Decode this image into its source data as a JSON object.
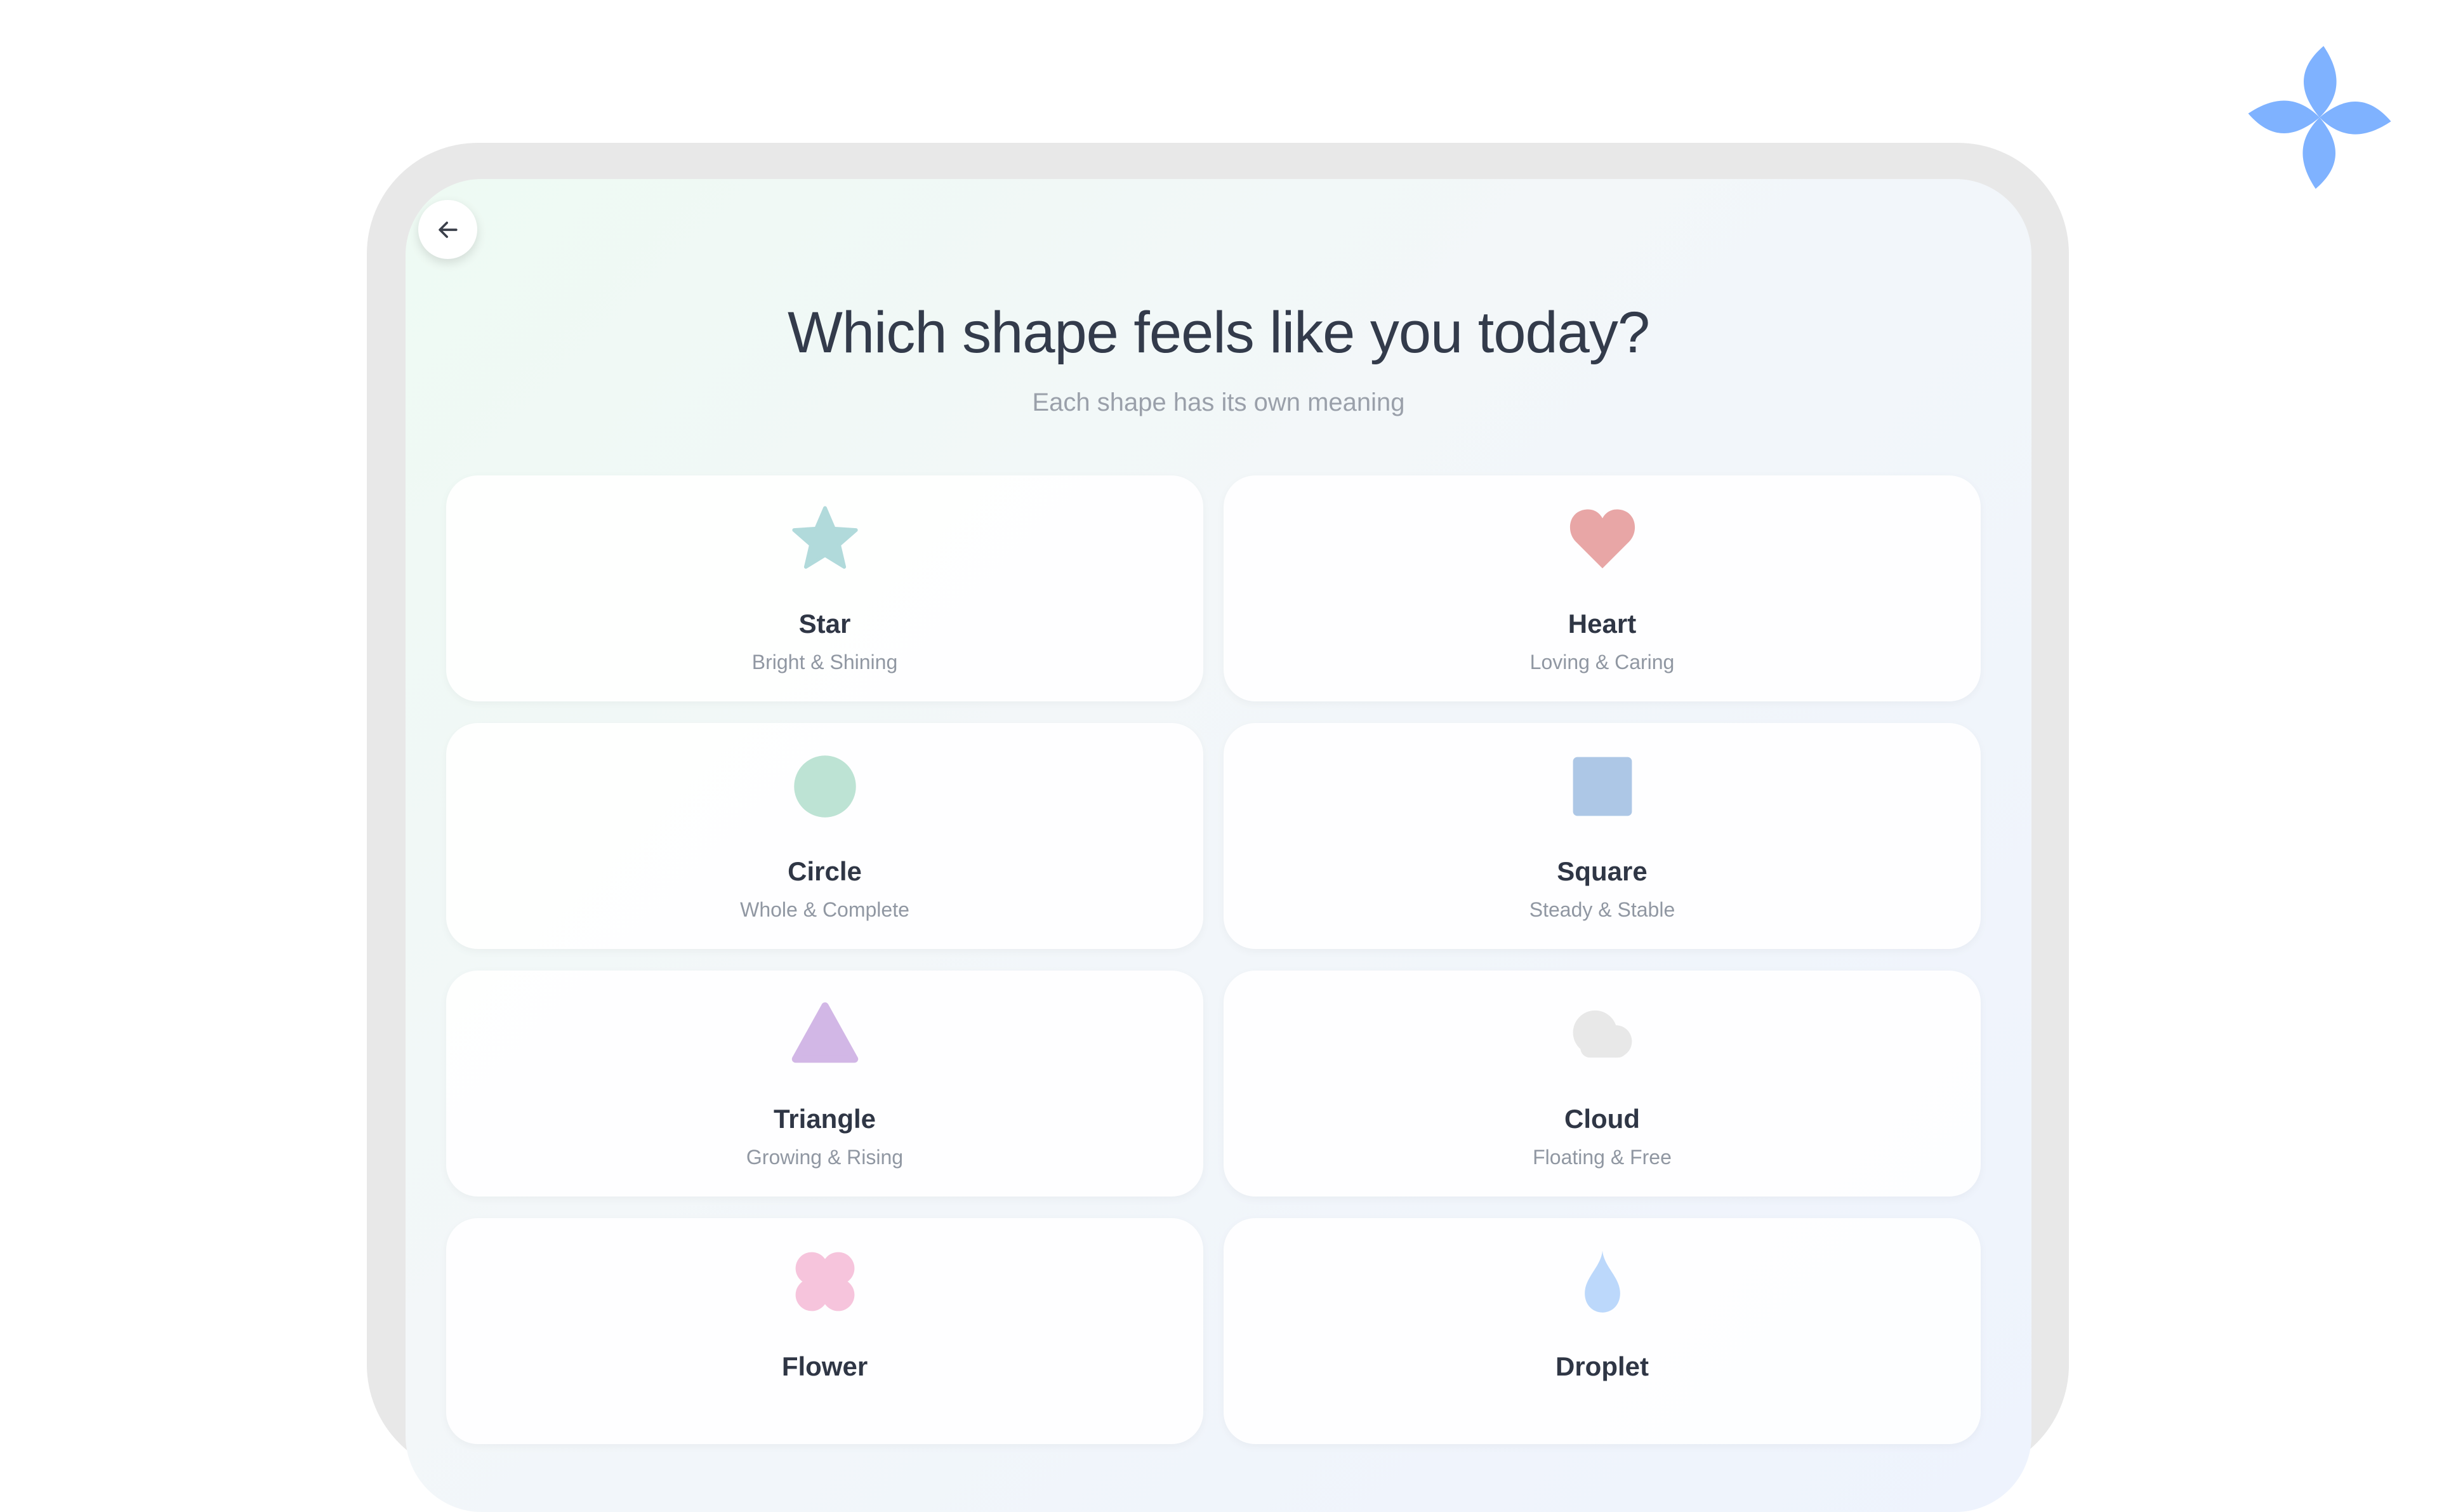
{
  "header": {
    "title": "Which shape feels like you today?",
    "subtitle": "Each shape has its own meaning"
  },
  "back_button": {
    "icon": "arrow-left-icon"
  },
  "logo": {
    "icon": "four-petal-flower-icon",
    "color": "#7fb2ff"
  },
  "shapes": [
    {
      "name": "Star",
      "desc": "Bright & Shining",
      "icon": "star-icon",
      "color": "#b1dadb"
    },
    {
      "name": "Heart",
      "desc": "Loving & Caring",
      "icon": "heart-icon",
      "color": "#e8a6a6"
    },
    {
      "name": "Circle",
      "desc": "Whole & Complete",
      "icon": "circle-icon",
      "color": "#bde3d4"
    },
    {
      "name": "Square",
      "desc": "Steady & Stable",
      "icon": "square-icon",
      "color": "#adc7e6"
    },
    {
      "name": "Triangle",
      "desc": "Growing & Rising",
      "icon": "triangle-icon",
      "color": "#d2b7e6"
    },
    {
      "name": "Cloud",
      "desc": "Floating & Free",
      "icon": "cloud-icon",
      "color": "#e8e8e8"
    },
    {
      "name": "Flower",
      "desc": "",
      "icon": "flower-icon",
      "color": "#f6c4dc"
    },
    {
      "name": "Droplet",
      "desc": "",
      "icon": "droplet-icon",
      "color": "#bcd8fb"
    }
  ]
}
